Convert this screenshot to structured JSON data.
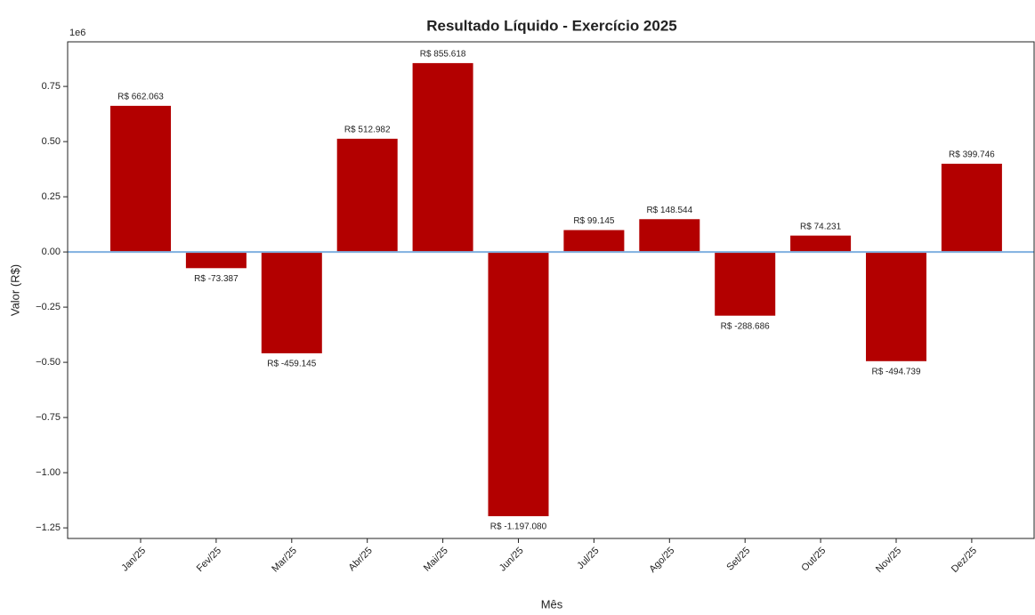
{
  "chart_data": {
    "type": "bar",
    "title": "Resultado Líquido - Exercício 2025",
    "xlabel": "Mês",
    "ylabel": "Valor (R$)",
    "offset_label": "1e6",
    "categories": [
      "Jan/25",
      "Fev/25",
      "Mar/25",
      "Abr/25",
      "Mai/25",
      "Jun/25",
      "Jul/25",
      "Ago/25",
      "Set/25",
      "Out/25",
      "Nov/25",
      "Dez/25"
    ],
    "values": [
      662063,
      -73387,
      -459145,
      512982,
      855618,
      -1197080,
      99145,
      148544,
      -288686,
      74231,
      -494739,
      399746
    ],
    "value_labels": [
      "R$ 662.063",
      "R$ -73.387",
      "R$ -459.145",
      "R$ 512.982",
      "R$ 855.618",
      "R$ -1.197.080",
      "R$ 99.145",
      "R$ 148.544",
      "R$ -288.686",
      "R$ 74.231",
      "R$ -494.739",
      "R$ 399.746"
    ],
    "color": "#b30000",
    "hline": 0,
    "hline_color": "#7fb0e0",
    "ylim": [
      -1298000,
      952000
    ],
    "yticks": [
      {
        "value": 750000,
        "label": "0.75"
      },
      {
        "value": 500000,
        "label": "0.50"
      },
      {
        "value": 250000,
        "label": "0.25"
      },
      {
        "value": 0,
        "label": "0.00"
      },
      {
        "value": -250000,
        "label": "−0.25"
      },
      {
        "value": -500000,
        "label": "−0.50"
      },
      {
        "value": -750000,
        "label": "−0.75"
      },
      {
        "value": -1000000,
        "label": "−1.00"
      },
      {
        "value": -1250000,
        "label": "−1.25"
      }
    ]
  }
}
